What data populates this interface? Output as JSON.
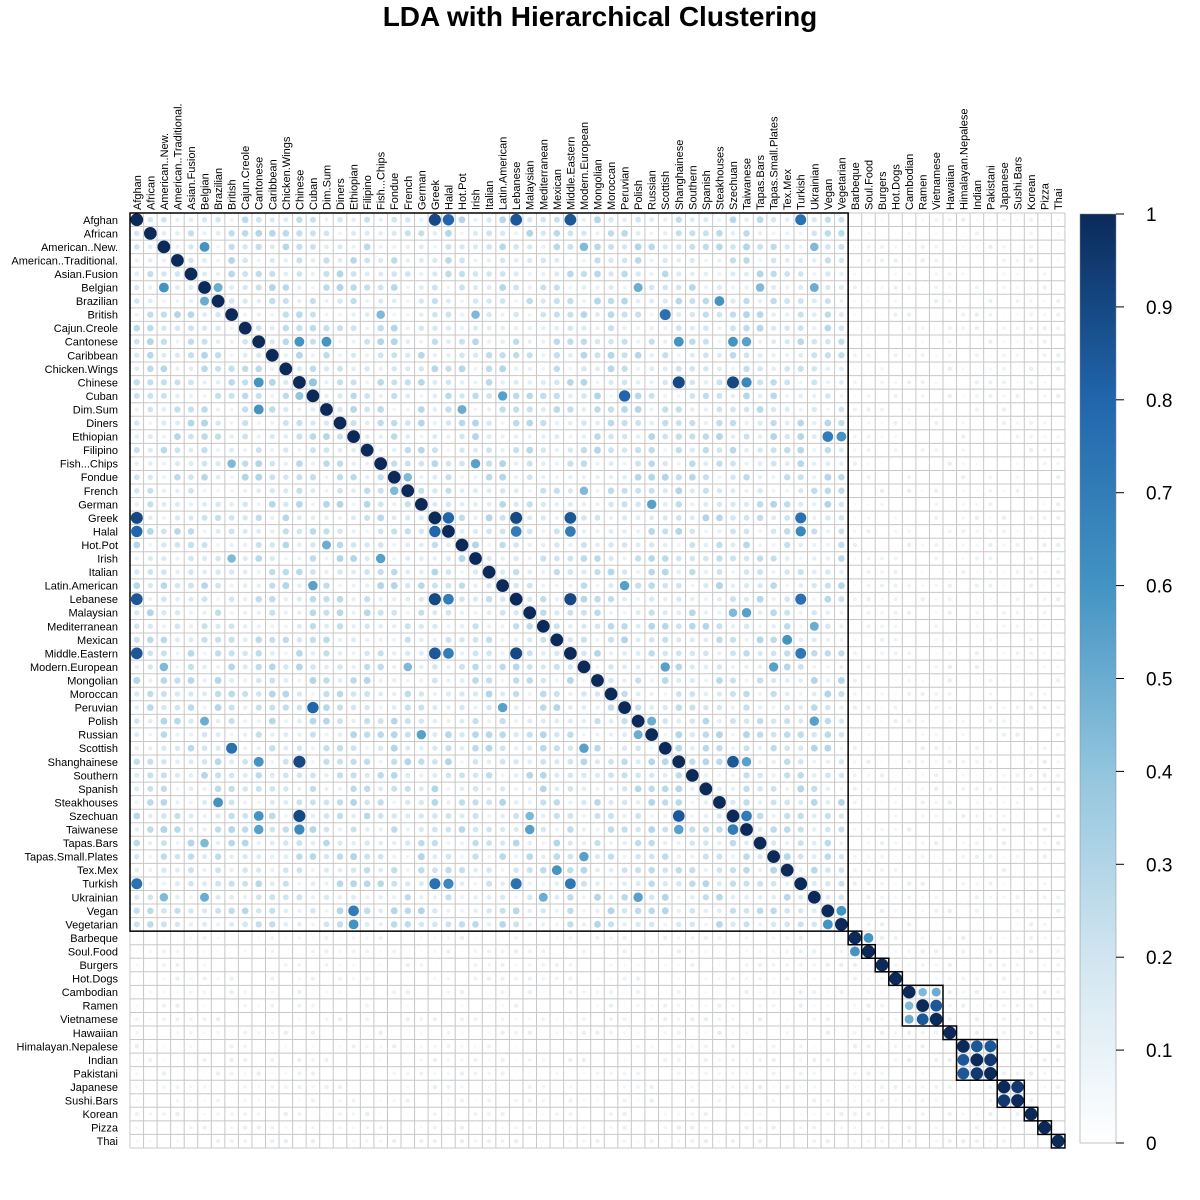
{
  "title": "LDA with Hierarchical Clustering",
  "chart_data": {
    "type": "heatmap",
    "title": "LDA with Hierarchical Clustering",
    "labels": [
      "Afghan",
      "African",
      "American..New.",
      "American..Traditional.",
      "Asian.Fusion",
      "Belgian",
      "Brazilian",
      "British",
      "Cajun.Creole",
      "Cantonese",
      "Caribbean",
      "Chicken.Wings",
      "Chinese",
      "Cuban",
      "Dim.Sum",
      "Diners",
      "Ethiopian",
      "Filipino",
      "Fish...Chips",
      "Fondue",
      "French",
      "German",
      "Greek",
      "Halal",
      "Hot.Pot",
      "Irish",
      "Italian",
      "Latin.American",
      "Lebanese",
      "Malaysian",
      "Mediterranean",
      "Mexican",
      "Middle.Eastern",
      "Modern.European",
      "Mongolian",
      "Moroccan",
      "Peruvian",
      "Polish",
      "Russian",
      "Scottish",
      "Shanghainese",
      "Southern",
      "Spanish",
      "Steakhouses",
      "Szechuan",
      "Taiwanese",
      "Tapas.Bars",
      "Tapas.Small.Plates",
      "Tex.Mex",
      "Turkish",
      "Ukrainian",
      "Vegan",
      "Vegetarian",
      "Barbeque",
      "Soul.Food",
      "Burgers",
      "Hot.Dogs",
      "Cambodian",
      "Ramen",
      "Vietnamese",
      "Hawaiian",
      "Himalayan.Nepalese",
      "Indian",
      "Pakistani",
      "Japanese",
      "Sushi.Bars",
      "Korean",
      "Pizza",
      "Thai"
    ],
    "legend": {
      "min": 0,
      "max": 1,
      "ticks": [
        "1",
        "0.9",
        "0.8",
        "0.7",
        "0.6",
        "0.5",
        "0.4",
        "0.3",
        "0.2",
        "0.1",
        "0"
      ],
      "color_low": "#ffffff",
      "color_high": "#0b2a5a"
    },
    "clusters": [
      [
        0,
        52
      ],
      [
        53,
        53
      ],
      [
        54,
        54
      ],
      [
        55,
        55
      ],
      [
        56,
        56
      ],
      [
        57,
        59
      ],
      [
        60,
        60
      ],
      [
        61,
        63
      ],
      [
        64,
        65
      ],
      [
        66,
        66
      ],
      [
        67,
        67
      ],
      [
        68,
        68
      ]
    ],
    "strong_links": [
      [
        "Afghan",
        "Greek",
        0.9
      ],
      [
        "Afghan",
        "Halal",
        0.8
      ],
      [
        "Afghan",
        "Lebanese",
        0.85
      ],
      [
        "Afghan",
        "Middle.Eastern",
        0.85
      ],
      [
        "Afghan",
        "Turkish",
        0.75
      ],
      [
        "Greek",
        "Halal",
        0.8
      ],
      [
        "Greek",
        "Lebanese",
        0.9
      ],
      [
        "Greek",
        "Middle.Eastern",
        0.85
      ],
      [
        "Greek",
        "Turkish",
        0.75
      ],
      [
        "Halal",
        "Lebanese",
        0.7
      ],
      [
        "Halal",
        "Middle.Eastern",
        0.7
      ],
      [
        "Halal",
        "Turkish",
        0.65
      ],
      [
        "Lebanese",
        "Middle.Eastern",
        0.9
      ],
      [
        "Lebanese",
        "Turkish",
        0.75
      ],
      [
        "Middle.Eastern",
        "Turkish",
        0.72
      ],
      [
        "American..New.",
        "Belgian",
        0.6
      ],
      [
        "American..New.",
        "Modern.European",
        0.45
      ],
      [
        "American..New.",
        "Ukrainian",
        0.45
      ],
      [
        "Belgian",
        "Brazilian",
        0.5
      ],
      [
        "Belgian",
        "Polish",
        0.5
      ],
      [
        "Belgian",
        "Ukrainian",
        0.5
      ],
      [
        "Belgian",
        "Tapas.Bars",
        0.45
      ],
      [
        "Brazilian",
        "Steakhouses",
        0.6
      ],
      [
        "British",
        "Scottish",
        0.75
      ],
      [
        "British",
        "Irish",
        0.45
      ],
      [
        "Cantonese",
        "Chinese",
        0.6
      ],
      [
        "Cantonese",
        "Dim.Sum",
        0.6
      ],
      [
        "Cantonese",
        "Shanghainese",
        0.6
      ],
      [
        "Cantonese",
        "Szechuan",
        0.6
      ],
      [
        "Cantonese",
        "Taiwanese",
        0.55
      ],
      [
        "Chinese",
        "Shanghainese",
        0.9
      ],
      [
        "Chinese",
        "Szechuan",
        0.9
      ],
      [
        "Chinese",
        "Taiwanese",
        0.65
      ],
      [
        "Chinese",
        "Cuban",
        0.4
      ],
      [
        "Szechuan",
        "Shanghainese",
        0.85
      ],
      [
        "Szechuan",
        "Taiwanese",
        0.7
      ],
      [
        "Shanghainese",
        "Taiwanese",
        0.55
      ],
      [
        "Cuban",
        "Peruvian",
        0.8
      ],
      [
        "Cuban",
        "Latin.American",
        0.55
      ],
      [
        "Latin.American",
        "Peruvian",
        0.55
      ],
      [
        "Dim.Sum",
        "Hot.Pot",
        0.5
      ],
      [
        "Ethiopian",
        "Vegan",
        0.7
      ],
      [
        "Ethiopian",
        "Vegetarian",
        0.6
      ],
      [
        "Vegan",
        "Vegetarian",
        0.6
      ],
      [
        "Fish...Chips",
        "Irish",
        0.55
      ],
      [
        "Fish...Chips",
        "British",
        0.45
      ],
      [
        "Fondue",
        "French",
        0.45
      ],
      [
        "French",
        "Modern.European",
        0.45
      ],
      [
        "German",
        "Russian",
        0.55
      ],
      [
        "Russian",
        "Polish",
        0.5
      ],
      [
        "Polish",
        "Ukrainian",
        0.55
      ],
      [
        "Malaysian",
        "Taiwanese",
        0.55
      ],
      [
        "Malaysian",
        "Szechuan",
        0.45
      ],
      [
        "Mexican",
        "Tex.Mex",
        0.6
      ],
      [
        "Modern.European",
        "Tapas.Small.Plates",
        0.55
      ],
      [
        "Modern.European",
        "Scottish",
        0.55
      ],
      [
        "Mediterranean",
        "Ukrainian",
        0.5
      ],
      [
        "Barbeque",
        "Soul.Food",
        0.6
      ],
      [
        "Cambodian",
        "Ramen",
        0.45
      ],
      [
        "Cambodian",
        "Vietnamese",
        0.5
      ],
      [
        "Ramen",
        "Vietnamese",
        0.85
      ],
      [
        "Himalayan.Nepalese",
        "Indian",
        0.85
      ],
      [
        "Himalayan.Nepalese",
        "Pakistani",
        0.85
      ],
      [
        "Indian",
        "Pakistani",
        0.95
      ],
      [
        "Japanese",
        "Sushi.Bars",
        0.95
      ]
    ],
    "grid": true,
    "legend_position": "right"
  }
}
